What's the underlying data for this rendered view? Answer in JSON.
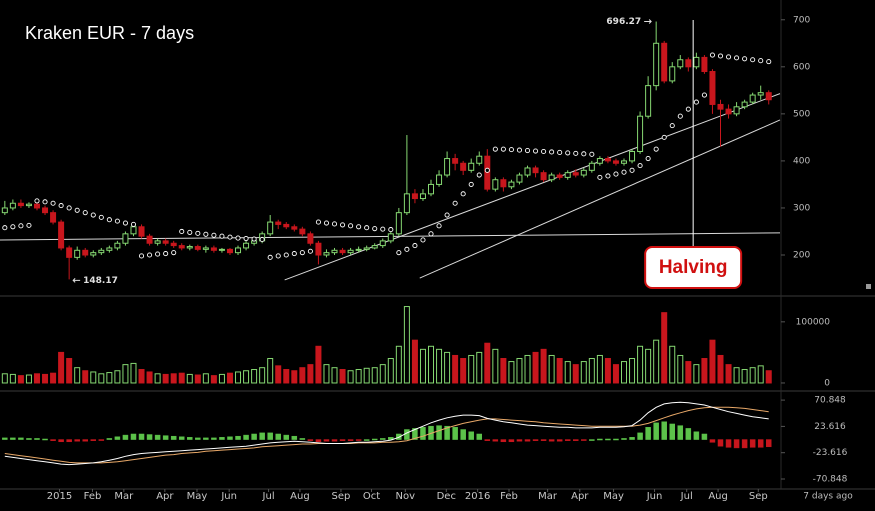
{
  "chart_data": {
    "type": "candlestick",
    "title": "Kraken EUR - 7 days",
    "footer": "7 days ago",
    "up_color": "#86d872",
    "down_color": "#c8161d",
    "xlim": [
      -0.6,
      96.4
    ],
    "xticks": [
      {
        "value": 6.8,
        "label": "2015"
      },
      {
        "value": 10.9,
        "label": "Feb"
      },
      {
        "value": 14.8,
        "label": "Mar"
      },
      {
        "value": 19.9,
        "label": "Apr"
      },
      {
        "value": 23.9,
        "label": "May"
      },
      {
        "value": 27.9,
        "label": "Jun"
      },
      {
        "value": 32.8,
        "label": "Jul"
      },
      {
        "value": 36.7,
        "label": "Aug"
      },
      {
        "value": 41.8,
        "label": "Sep"
      },
      {
        "value": 45.6,
        "label": "Oct"
      },
      {
        "value": 49.8,
        "label": "Nov"
      },
      {
        "value": 54.9,
        "label": "Dec"
      },
      {
        "value": 58.8,
        "label": "2016"
      },
      {
        "value": 62.7,
        "label": "Feb"
      },
      {
        "value": 67.5,
        "label": "Mar"
      },
      {
        "value": 71.5,
        "label": "Apr"
      },
      {
        "value": 75.7,
        "label": "May"
      },
      {
        "value": 80.8,
        "label": "Jun"
      },
      {
        "value": 84.8,
        "label": "Jul"
      },
      {
        "value": 88.7,
        "label": "Aug"
      },
      {
        "value": 93.7,
        "label": "Sep"
      }
    ],
    "ylim": [
      115,
      742
    ],
    "yticks": [
      200,
      300,
      400,
      500,
      600,
      700
    ],
    "open": [
      290,
      300,
      310,
      305,
      308,
      300,
      290,
      270,
      215,
      195,
      210,
      200,
      205,
      210,
      215,
      225,
      245,
      260,
      240,
      225,
      230,
      225,
      220,
      215,
      218,
      212,
      215,
      210,
      212,
      205,
      215,
      225,
      230,
      245,
      270,
      265,
      260,
      255,
      245,
      225,
      200,
      205,
      210,
      205,
      210,
      212,
      215,
      220,
      230,
      245,
      290,
      330,
      320,
      330,
      350,
      370,
      405,
      395,
      380,
      395,
      410,
      340,
      360,
      345,
      355,
      370,
      385,
      375,
      360,
      370,
      365,
      375,
      370,
      380,
      395,
      405,
      400,
      395,
      400,
      420,
      495,
      560,
      650,
      570,
      600,
      615,
      600,
      620,
      590,
      520,
      510,
      500,
      515,
      525,
      540,
      545
    ],
    "high": [
      315,
      318,
      318,
      312,
      312,
      305,
      295,
      275,
      220,
      218,
      215,
      210,
      215,
      220,
      230,
      250,
      270,
      265,
      245,
      235,
      235,
      230,
      225,
      222,
      222,
      220,
      220,
      215,
      215,
      220,
      230,
      235,
      250,
      285,
      275,
      270,
      265,
      260,
      250,
      230,
      212,
      215,
      215,
      215,
      218,
      220,
      225,
      235,
      255,
      300,
      455,
      340,
      340,
      360,
      380,
      420,
      415,
      400,
      405,
      420,
      425,
      365,
      365,
      360,
      375,
      390,
      390,
      380,
      375,
      375,
      380,
      382,
      385,
      400,
      410,
      410,
      405,
      405,
      425,
      505,
      580,
      696.27,
      655,
      610,
      625,
      620,
      630,
      625,
      595,
      530,
      520,
      525,
      530,
      545,
      560,
      550
    ],
    "low": [
      285,
      295,
      300,
      300,
      295,
      285,
      265,
      210,
      148.17,
      190,
      195,
      195,
      200,
      205,
      210,
      220,
      240,
      235,
      220,
      220,
      220,
      215,
      210,
      210,
      208,
      205,
      205,
      205,
      200,
      200,
      210,
      220,
      225,
      240,
      255,
      255,
      250,
      240,
      220,
      180,
      195,
      200,
      200,
      200,
      205,
      208,
      212,
      215,
      225,
      240,
      285,
      310,
      315,
      325,
      345,
      365,
      380,
      370,
      375,
      390,
      335,
      335,
      335,
      340,
      350,
      365,
      365,
      355,
      355,
      360,
      360,
      365,
      365,
      375,
      390,
      395,
      390,
      390,
      395,
      415,
      490,
      550,
      565,
      565,
      595,
      590,
      595,
      585,
      500,
      430,
      490,
      495,
      510,
      520,
      530,
      520
    ],
    "close": [
      300,
      310,
      305,
      308,
      300,
      290,
      270,
      215,
      195,
      210,
      200,
      205,
      210,
      215,
      225,
      245,
      260,
      240,
      225,
      230,
      225,
      220,
      215,
      218,
      212,
      215,
      210,
      212,
      205,
      215,
      225,
      230,
      245,
      270,
      265,
      260,
      255,
      245,
      225,
      200,
      205,
      210,
      205,
      210,
      212,
      215,
      220,
      230,
      245,
      290,
      330,
      320,
      330,
      350,
      370,
      405,
      395,
      380,
      395,
      410,
      340,
      360,
      345,
      355,
      370,
      385,
      375,
      360,
      370,
      365,
      375,
      370,
      380,
      395,
      405,
      400,
      395,
      400,
      420,
      495,
      560,
      650,
      570,
      600,
      615,
      600,
      620,
      590,
      520,
      510,
      500,
      515,
      525,
      540,
      545,
      530
    ],
    "peak": 696.27,
    "trough": 148.17,
    "sar": {
      "color": "#ffffff",
      "values": [
        258,
        260,
        262,
        263,
        315,
        313,
        310,
        305,
        300,
        295,
        290,
        285,
        280,
        275,
        272,
        268,
        265,
        198,
        200,
        202,
        203,
        205,
        250,
        248,
        246,
        244,
        242,
        240,
        238,
        236,
        235,
        234,
        233,
        195,
        198,
        200,
        203,
        205,
        208,
        270,
        268,
        266,
        264,
        262,
        260,
        258,
        256,
        255,
        254,
        205,
        212,
        220,
        232,
        245,
        262,
        285,
        310,
        330,
        350,
        370,
        380,
        425,
        425,
        424,
        423,
        422,
        421,
        420,
        419,
        418,
        417,
        416,
        415,
        414,
        365,
        368,
        372,
        376,
        380,
        390,
        405,
        425,
        450,
        475,
        495,
        510,
        525,
        540,
        625,
        623,
        621,
        619,
        617,
        615,
        613,
        611
      ]
    },
    "trendline_color": "#d8d8d8",
    "trendlines": [
      [
        -0.6,
        232,
        96.4,
        247
      ],
      [
        34.8,
        147,
        96.4,
        543
      ],
      [
        51.6,
        151,
        96.4,
        487
      ]
    ],
    "halving": {
      "label": "Halving",
      "x": 85.6
    },
    "volume": {
      "ylim": [
        -11500,
        139000
      ],
      "yticks": [
        0,
        100000
      ],
      "values": [
        15000,
        14000,
        12000,
        13000,
        15000,
        14000,
        16000,
        50000,
        40000,
        25000,
        20000,
        18000,
        15000,
        17000,
        20000,
        30000,
        32000,
        22000,
        18000,
        15000,
        14000,
        15000,
        16000,
        14000,
        13000,
        15000,
        12000,
        14000,
        16000,
        18000,
        20000,
        22000,
        25000,
        40000,
        28000,
        22000,
        20000,
        25000,
        30000,
        60000,
        30000,
        25000,
        22000,
        20000,
        22000,
        24000,
        25000,
        30000,
        40000,
        60000,
        125000,
        70000,
        55000,
        60000,
        55000,
        50000,
        45000,
        40000,
        45000,
        50000,
        65000,
        55000,
        40000,
        35000,
        40000,
        45000,
        50000,
        55000,
        45000,
        40000,
        35000,
        30000,
        35000,
        40000,
        45000,
        40000,
        30000,
        35000,
        40000,
        60000,
        55000,
        70000,
        115000,
        60000,
        45000,
        35000,
        30000,
        40000,
        70000,
        45000,
        30000,
        25000,
        22000,
        25000,
        28000,
        20000
      ]
    },
    "macd": {
      "ylim": [
        -87,
        83.6
      ],
      "yticks": [
        70.848,
        23.616,
        -23.616,
        -70.848
      ],
      "macd_color": "#ffffff",
      "signal_color": "#e8a868",
      "histogram": [
        3,
        3,
        3,
        2,
        2,
        1,
        -2,
        -4,
        -4,
        -3,
        -3,
        -2,
        -1,
        2,
        5,
        8,
        10,
        10,
        9,
        8,
        7,
        6,
        5,
        4,
        3,
        3,
        3,
        4,
        5,
        6,
        8,
        10,
        12,
        12,
        10,
        8,
        6,
        2,
        -2,
        -4,
        -3,
        -3,
        -2,
        -2,
        -1,
        0,
        1,
        2,
        4,
        10,
        18,
        20,
        22,
        24,
        25,
        24,
        22,
        18,
        14,
        10,
        -2,
        -3,
        -4,
        -4,
        -3,
        -3,
        -2,
        -2,
        -3,
        -3,
        -2,
        -2,
        -1,
        0,
        1,
        1,
        1,
        2,
        4,
        12,
        22,
        30,
        32,
        28,
        25,
        20,
        14,
        10,
        -5,
        -12,
        -14,
        -15,
        -15,
        -14,
        -14,
        -13
      ],
      "macd": [
        -30,
        -32,
        -34,
        -36,
        -38,
        -40,
        -42,
        -44,
        -45,
        -44,
        -43,
        -42,
        -40,
        -37,
        -34,
        -30,
        -27,
        -25,
        -24,
        -23,
        -22,
        -21,
        -20,
        -19,
        -18,
        -17,
        -16,
        -15,
        -14,
        -13,
        -12,
        -10,
        -8,
        -6,
        -5,
        -4,
        -3,
        -4,
        -5,
        -6,
        -7,
        -7,
        -7,
        -6,
        -5,
        -5,
        -4,
        -3,
        -1,
        4,
        12,
        18,
        24,
        30,
        35,
        39,
        42,
        44,
        44,
        43,
        38,
        35,
        32,
        30,
        28,
        26,
        25,
        24,
        23,
        22,
        22,
        21,
        21,
        21,
        22,
        22,
        22,
        23,
        25,
        35,
        48,
        58,
        64,
        66,
        67,
        66,
        64,
        62,
        58,
        54,
        50,
        47,
        44,
        41,
        39,
        37
      ],
      "signal": [
        -25,
        -27,
        -29,
        -31,
        -33,
        -35,
        -37,
        -39,
        -41,
        -42,
        -42,
        -42,
        -42,
        -41,
        -40,
        -38,
        -36,
        -34,
        -32,
        -30,
        -28,
        -27,
        -25,
        -24,
        -23,
        -21,
        -20,
        -19,
        -18,
        -17,
        -16,
        -15,
        -13,
        -12,
        -11,
        -10,
        -9,
        -8,
        -8,
        -7,
        -7,
        -7,
        -7,
        -7,
        -6,
        -6,
        -6,
        -5,
        -5,
        -4,
        -2,
        2,
        6,
        11,
        16,
        21,
        25,
        29,
        32,
        35,
        37,
        37,
        36,
        35,
        34,
        33,
        32,
        30,
        29,
        28,
        27,
        26,
        25,
        24,
        24,
        24,
        24,
        24,
        24,
        26,
        29,
        34,
        39,
        44,
        48,
        52,
        55,
        57,
        58,
        58,
        58,
        57,
        56,
        54,
        52,
        50
      ]
    }
  }
}
